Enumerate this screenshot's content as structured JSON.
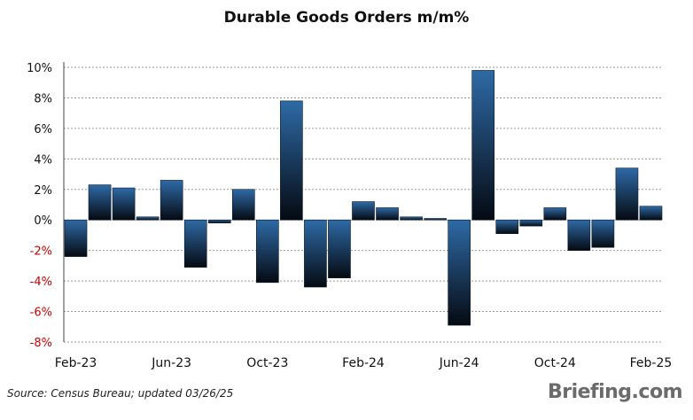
{
  "chart_data": {
    "type": "bar",
    "title": "Durable Goods Orders m/m%",
    "categories": [
      "Feb-23",
      "Mar-23",
      "Apr-23",
      "May-23",
      "Jun-23",
      "Jul-23",
      "Aug-23",
      "Sep-23",
      "Oct-23",
      "Nov-23",
      "Dec-23",
      "Jan-24",
      "Feb-24",
      "Mar-24",
      "Apr-24",
      "May-24",
      "Jun-24",
      "Jul-24",
      "Aug-24",
      "Sep-24",
      "Oct-24",
      "Nov-24",
      "Dec-24",
      "Jan-25",
      "Feb-25"
    ],
    "values": [
      -2.4,
      2.3,
      2.1,
      0.2,
      2.6,
      -3.1,
      -0.2,
      2.0,
      -4.1,
      7.8,
      -4.4,
      -3.8,
      1.2,
      0.8,
      0.2,
      0.1,
      -6.9,
      9.8,
      -0.9,
      -0.4,
      0.8,
      -2.0,
      -1.8,
      3.4,
      0.9
    ],
    "x_tick_labels": [
      "Feb-23",
      "Jun-23",
      "Oct-23",
      "Feb-24",
      "Jun-24",
      "Oct-24",
      "Feb-25"
    ],
    "x_tick_categories": [
      "Feb-23",
      "Jun-23",
      "Oct-23",
      "Feb-24",
      "Jun-24",
      "Oct-24",
      "Feb-25"
    ],
    "y_ticks": [
      10,
      8,
      6,
      4,
      2,
      0,
      -2,
      -4,
      -6,
      -8
    ],
    "y_tick_labels": [
      "10%",
      "8%",
      "6%",
      "4%",
      "2%",
      "0%",
      "-2%",
      "-4%",
      "-6%",
      "-8%"
    ],
    "ylim": [
      -8,
      10
    ],
    "grid": true,
    "xlabel": "",
    "ylabel": "",
    "colors": {
      "bar_top": "#2e6aa6",
      "bar_bottom": "#050a12",
      "negative_label": "#cc0000",
      "positive_label": "#111111",
      "grid": "#9a9a9a"
    }
  },
  "footer": {
    "source": "Source:  Census Bureau; updated  03/26/25",
    "brand": "Briefing.com"
  }
}
